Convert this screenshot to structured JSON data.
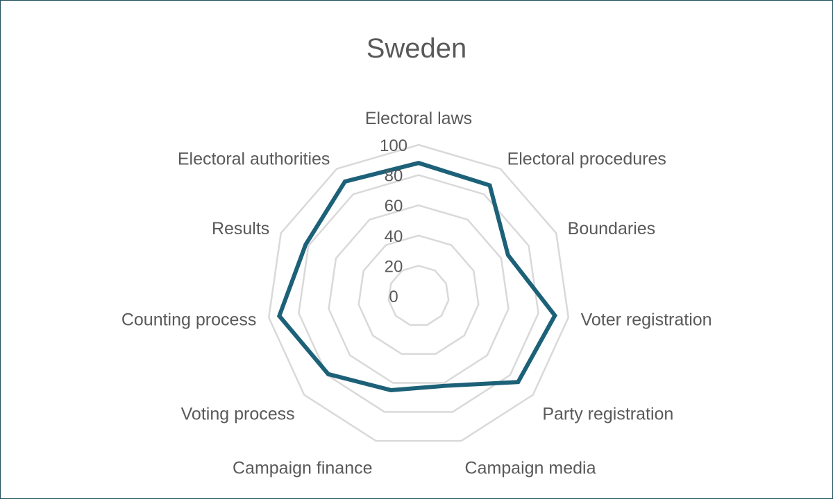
{
  "chart_data": {
    "type": "radar",
    "title": "Sweden",
    "categories": [
      "Electoral laws",
      "Electoral procedures",
      "Boundaries",
      "Voter registration",
      "Party registration",
      "Campaign media",
      "Campaign finance",
      "Voting process",
      "Counting process",
      "Results",
      "Electoral authorities"
    ],
    "series": [
      {
        "values": [
          88,
          87,
          65,
          91,
          87,
          62,
          65,
          79,
          93,
          82,
          90
        ]
      }
    ],
    "r_ticks": [
      "0",
      "20",
      "40",
      "60",
      "80",
      "100"
    ],
    "r_range": [
      0,
      100
    ],
    "grid": true,
    "colors": {
      "series": "#1c6178",
      "grid": "#d9d9d9",
      "text": "#595959"
    }
  }
}
